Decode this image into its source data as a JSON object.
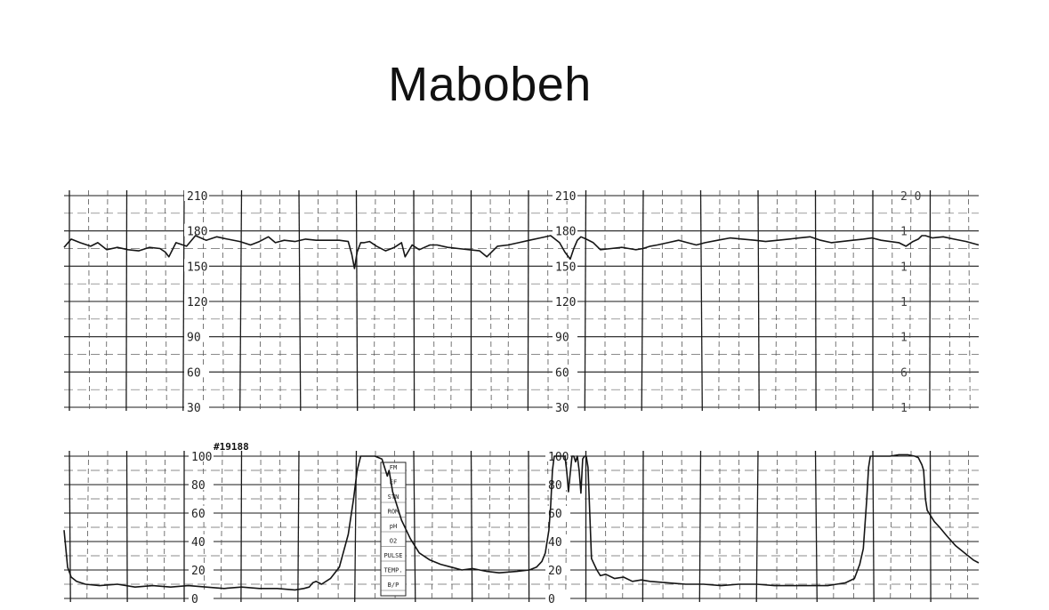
{
  "slide": {
    "title": "Mabobeh"
  },
  "chart_data": [
    {
      "type": "line",
      "x_range": [
        0,
        1030
      ],
      "ylim": [
        30,
        210
      ],
      "yticks": [
        210,
        180,
        150,
        120,
        90,
        60,
        30
      ],
      "ytick_labels_right": [
        "2 0",
        "1",
        "1",
        "1",
        "1",
        "6",
        "1"
      ],
      "grid": true,
      "series": [
        {
          "x": [
            0,
            8,
            18,
            30,
            38,
            48,
            60,
            72,
            84,
            96,
            108,
            114,
            118,
            126,
            138,
            148,
            160,
            172,
            184,
            198,
            210,
            220,
            230,
            238,
            248,
            260,
            272,
            284,
            296,
            310,
            320,
            324,
            327,
            330,
            334,
            338,
            344,
            352,
            362,
            372,
            380,
            384,
            392,
            400,
            412,
            420,
            432,
            444,
            456,
            468,
            476,
            488,
            500,
            512,
            524,
            536,
            548,
            558,
            564,
            570,
            574,
            578,
            582,
            588,
            596,
            604,
            616,
            628,
            636,
            644,
            652,
            660,
            668,
            680,
            692,
            702,
            712,
            722,
            736,
            750,
            764,
            778,
            790,
            804,
            816,
            828,
            840,
            852,
            864,
            876,
            888,
            900,
            910,
            920,
            930,
            940,
            948,
            956,
            962,
            966,
            970,
            978,
            990,
            1002,
            1016,
            1030
          ],
          "y": [
            166,
            173,
            170,
            167,
            170,
            164,
            166,
            164,
            163,
            166,
            165,
            162,
            158,
            170,
            167,
            176,
            172,
            175,
            173,
            171,
            168,
            171,
            175,
            170,
            172,
            171,
            173,
            172,
            172,
            172,
            171,
            160,
            148,
            162,
            170,
            170,
            171,
            167,
            163,
            166,
            170,
            158,
            168,
            164,
            168,
            168,
            166,
            165,
            164,
            163,
            158,
            167,
            168,
            170,
            172,
            174,
            176,
            170,
            162,
            156,
            165,
            172,
            175,
            173,
            170,
            164,
            165,
            166,
            165,
            164,
            165,
            167,
            168,
            170,
            172,
            170,
            168,
            170,
            172,
            174,
            173,
            172,
            171,
            172,
            173,
            174,
            175,
            172,
            170,
            171,
            172,
            173,
            174,
            172,
            171,
            170,
            167,
            171,
            173,
            176,
            176,
            174,
            175,
            173,
            171,
            168
          ]
        }
      ]
    },
    {
      "type": "line",
      "x_range": [
        0,
        1030
      ],
      "ylim": [
        0,
        100
      ],
      "yticks": [
        100,
        80,
        60,
        40,
        20,
        0
      ],
      "annotations": [
        "#19188"
      ],
      "panel_labels": [
        "FM",
        "EF",
        "STN",
        "ROM",
        "pH",
        "O2",
        "PULSE",
        "TEMP.",
        "B/P"
      ],
      "grid": true,
      "series": [
        {
          "x": [
            0,
            2,
            4,
            8,
            14,
            24,
            40,
            60,
            80,
            100,
            120,
            140,
            160,
            180,
            200,
            220,
            240,
            260,
            270,
            276,
            280,
            284,
            290,
            300,
            310,
            320,
            326,
            330,
            334,
            336,
            340,
            346,
            350,
            354,
            358,
            360,
            364,
            366,
            370,
            380,
            390,
            400,
            412,
            424,
            436,
            448,
            460,
            476,
            490,
            510,
            524,
            532,
            538,
            542,
            546,
            548,
            550,
            552,
            556,
            560,
            564,
            566,
            568,
            570,
            572,
            574,
            576,
            578,
            580,
            582,
            584,
            586,
            588,
            590,
            594,
            600,
            604,
            610,
            620,
            630,
            640,
            650,
            660,
            680,
            700,
            720,
            740,
            760,
            780,
            800,
            820,
            840,
            860,
            870,
            880,
            890,
            896,
            900,
            904,
            906,
            908,
            910,
            912,
            920,
            930,
            940,
            950,
            958,
            962,
            966,
            968,
            970,
            972,
            976,
            980,
            986,
            994,
            1004,
            1014,
            1024,
            1030
          ],
          "y": [
            48,
            35,
            22,
            15,
            12,
            10,
            9,
            10,
            8,
            9,
            8,
            9,
            8,
            7,
            8,
            7,
            7,
            6,
            7,
            8,
            11,
            12,
            10,
            14,
            22,
            45,
            70,
            90,
            100,
            100,
            100,
            100,
            100,
            99,
            98,
            94,
            86,
            90,
            75,
            55,
            42,
            32,
            27,
            24,
            22,
            20,
            21,
            19,
            18,
            19,
            20,
            22,
            26,
            32,
            48,
            65,
            90,
            100,
            100,
            100,
            100,
            90,
            75,
            88,
            100,
            100,
            96,
            100,
            90,
            74,
            98,
            100,
            100,
            92,
            28,
            20,
            16,
            17,
            14,
            15,
            12,
            13,
            12,
            11,
            10,
            10,
            9,
            10,
            10,
            9,
            9,
            9,
            9,
            10,
            11,
            14,
            24,
            35,
            70,
            92,
            100,
            100,
            100,
            100,
            100,
            101,
            101,
            100,
            99,
            94,
            90,
            70,
            62,
            58,
            54,
            50,
            44,
            37,
            32,
            27,
            25
          ]
        }
      ]
    }
  ]
}
